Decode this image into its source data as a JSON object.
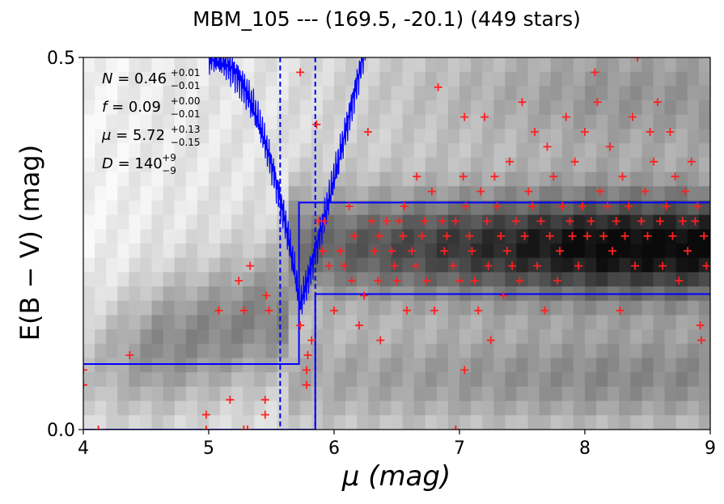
{
  "chart_data": {
    "type": "scatter",
    "title": "MBM_105 --- (169.5, -20.1) (449 stars)",
    "xlabel": "μ (mag)",
    "ylabel": "E(B − V) (mag)",
    "xlim": [
      4,
      9
    ],
    "ylim": [
      0,
      0.5
    ],
    "xticks": [
      "4",
      "5",
      "6",
      "7",
      "8",
      "9"
    ],
    "yticks": [
      "0.0",
      "0.5"
    ],
    "grid": false,
    "annotations": [
      {
        "symbol": "N",
        "value": "0.46",
        "sup": "+0.01",
        "sub": "−0.01"
      },
      {
        "symbol": "f",
        "value": "0.09",
        "sup": "+0.00",
        "sub": "−0.01"
      },
      {
        "symbol": "μ",
        "value": "5.72",
        "sup": "+0.13",
        "sub": "−0.15"
      },
      {
        "symbol": "D",
        "value": "140",
        "sup": "+9",
        "sub": "−9"
      }
    ],
    "step_models": [
      {
        "color": "#0000ff",
        "x_break": 5.72,
        "y_before": 0.088,
        "y_after": 0.305
      },
      {
        "color": "#0000ff",
        "x_break": 5.85,
        "y_before": 0.0,
        "y_after": 0.182
      }
    ],
    "vlines": [
      5.57,
      5.85
    ],
    "vline_color": "#0000ff",
    "marker_color": "#ff2020",
    "points": [
      [
        4.0,
        0.08
      ],
      [
        4.0,
        0.06
      ],
      [
        4.12,
        0.0
      ],
      [
        4.37,
        0.1
      ],
      [
        4.98,
        0.0
      ],
      [
        4.98,
        0.02
      ],
      [
        5.08,
        0.16
      ],
      [
        5.17,
        0.04
      ],
      [
        5.24,
        0.2
      ],
      [
        5.28,
        0.16
      ],
      [
        5.28,
        0.0
      ],
      [
        5.31,
        0.0
      ],
      [
        5.33,
        0.22
      ],
      [
        5.45,
        0.02
      ],
      [
        5.45,
        0.04
      ],
      [
        5.46,
        0.18
      ],
      [
        5.48,
        0.16
      ],
      [
        5.73,
        0.48
      ],
      [
        5.73,
        0.14
      ],
      [
        5.78,
        0.08
      ],
      [
        5.78,
        0.06
      ],
      [
        5.79,
        0.1
      ],
      [
        5.82,
        0.12
      ],
      [
        5.86,
        0.41
      ],
      [
        5.88,
        0.28
      ],
      [
        5.91,
        0.24
      ],
      [
        5.92,
        0.28
      ],
      [
        5.96,
        0.22
      ],
      [
        6.0,
        0.16
      ],
      [
        6.05,
        0.24
      ],
      [
        6.08,
        0.22
      ],
      [
        6.12,
        0.3
      ],
      [
        6.14,
        0.2
      ],
      [
        6.16,
        0.26
      ],
      [
        6.2,
        0.14
      ],
      [
        6.24,
        0.18
      ],
      [
        6.27,
        0.4
      ],
      [
        6.3,
        0.28
      ],
      [
        6.32,
        0.24
      ],
      [
        6.35,
        0.2
      ],
      [
        6.36,
        0.26
      ],
      [
        6.37,
        0.12
      ],
      [
        6.42,
        0.28
      ],
      [
        6.46,
        0.24
      ],
      [
        6.48,
        0.22
      ],
      [
        6.5,
        0.2
      ],
      [
        6.52,
        0.28
      ],
      [
        6.55,
        0.26
      ],
      [
        6.56,
        0.3
      ],
      [
        6.58,
        0.16
      ],
      [
        6.62,
        0.24
      ],
      [
        6.65,
        0.22
      ],
      [
        6.66,
        0.34
      ],
      [
        6.7,
        0.26
      ],
      [
        6.72,
        0.28
      ],
      [
        6.74,
        0.2
      ],
      [
        6.78,
        0.32
      ],
      [
        6.8,
        0.16
      ],
      [
        6.83,
        0.46
      ],
      [
        6.86,
        0.28
      ],
      [
        6.88,
        0.24
      ],
      [
        6.9,
        0.26
      ],
      [
        6.95,
        0.22
      ],
      [
        6.97,
        0.28
      ],
      [
        7.0,
        0.2
      ],
      [
        6.97,
        0.0
      ],
      [
        7.03,
        0.34
      ],
      [
        7.04,
        0.42
      ],
      [
        7.04,
        0.08
      ],
      [
        7.05,
        0.3
      ],
      [
        7.08,
        0.26
      ],
      [
        7.1,
        0.24
      ],
      [
        7.12,
        0.2
      ],
      [
        7.15,
        0.16
      ],
      [
        7.17,
        0.32
      ],
      [
        7.2,
        0.42
      ],
      [
        7.22,
        0.28
      ],
      [
        7.23,
        0.22
      ],
      [
        7.25,
        0.12
      ],
      [
        7.28,
        0.34
      ],
      [
        7.3,
        0.3
      ],
      [
        7.33,
        0.26
      ],
      [
        7.35,
        0.18
      ],
      [
        7.38,
        0.24
      ],
      [
        7.4,
        0.36
      ],
      [
        7.42,
        0.22
      ],
      [
        7.45,
        0.28
      ],
      [
        7.48,
        0.2
      ],
      [
        7.5,
        0.44
      ],
      [
        7.52,
        0.26
      ],
      [
        7.55,
        0.32
      ],
      [
        7.58,
        0.3
      ],
      [
        7.6,
        0.4
      ],
      [
        7.62,
        0.22
      ],
      [
        7.65,
        0.28
      ],
      [
        7.68,
        0.16
      ],
      [
        7.7,
        0.38
      ],
      [
        7.72,
        0.26
      ],
      [
        7.75,
        0.34
      ],
      [
        7.78,
        0.2
      ],
      [
        7.8,
        0.24
      ],
      [
        7.82,
        0.3
      ],
      [
        7.85,
        0.42
      ],
      [
        7.88,
        0.28
      ],
      [
        7.9,
        0.26
      ],
      [
        7.92,
        0.36
      ],
      [
        7.95,
        0.22
      ],
      [
        7.98,
        0.3
      ],
      [
        8.0,
        0.4
      ],
      [
        8.02,
        0.26
      ],
      [
        8.05,
        0.28
      ],
      [
        8.08,
        0.48
      ],
      [
        8.1,
        0.44
      ],
      [
        8.12,
        0.32
      ],
      [
        8.15,
        0.26
      ],
      [
        8.18,
        0.3
      ],
      [
        8.2,
        0.38
      ],
      [
        8.22,
        0.24
      ],
      [
        8.25,
        0.28
      ],
      [
        8.28,
        0.16
      ],
      [
        8.3,
        0.34
      ],
      [
        8.32,
        0.26
      ],
      [
        8.35,
        0.3
      ],
      [
        8.38,
        0.42
      ],
      [
        8.4,
        0.22
      ],
      [
        8.42,
        0.5
      ],
      [
        8.45,
        0.28
      ],
      [
        8.48,
        0.32
      ],
      [
        8.5,
        0.26
      ],
      [
        8.52,
        0.4
      ],
      [
        8.55,
        0.36
      ],
      [
        8.58,
        0.44
      ],
      [
        8.6,
        0.28
      ],
      [
        8.62,
        0.22
      ],
      [
        8.65,
        0.3
      ],
      [
        8.68,
        0.4
      ],
      [
        8.7,
        0.26
      ],
      [
        8.72,
        0.34
      ],
      [
        8.75,
        0.2
      ],
      [
        8.78,
        0.28
      ],
      [
        8.8,
        0.32
      ],
      [
        8.82,
        0.24
      ],
      [
        8.85,
        0.36
      ],
      [
        8.88,
        0.28
      ],
      [
        8.9,
        0.3
      ],
      [
        8.92,
        0.14
      ],
      [
        8.93,
        0.12
      ],
      [
        8.95,
        0.26
      ],
      [
        8.97,
        0.22
      ]
    ]
  }
}
